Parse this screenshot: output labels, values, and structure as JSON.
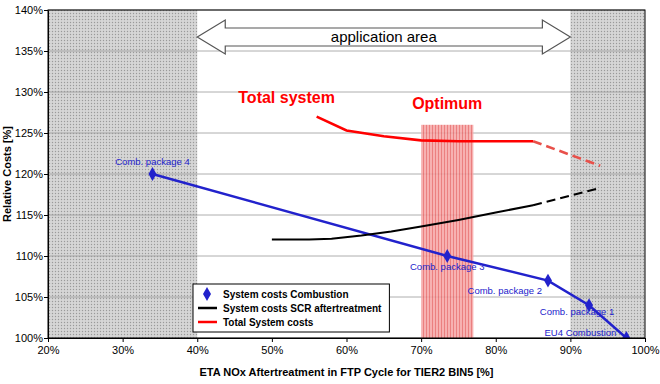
{
  "chart_data": {
    "type": "line",
    "x_label": "ETA NOx Aftertreatment in FTP Cycle for TIER2 BIN5 [%]",
    "y_label": "Relative Costs [%]",
    "xlim": [
      20,
      100
    ],
    "xticks": [
      {
        "value": 20,
        "label": "20%"
      },
      {
        "value": 30,
        "label": "30%"
      },
      {
        "value": 40,
        "label": "40%"
      },
      {
        "value": 50,
        "label": "50%"
      },
      {
        "value": 60,
        "label": "60%"
      },
      {
        "value": 70,
        "label": "70%"
      },
      {
        "value": 80,
        "label": "80%"
      },
      {
        "value": 90,
        "label": "90%"
      },
      {
        "value": 100,
        "label": "100%"
      }
    ],
    "ylim": [
      100,
      140
    ],
    "yticks": [
      {
        "value": 100,
        "label": "100%"
      },
      {
        "value": 105,
        "label": "105%"
      },
      {
        "value": 110,
        "label": "110%"
      },
      {
        "value": 115,
        "label": "115%"
      },
      {
        "value": 120,
        "label": "120%"
      },
      {
        "value": 125,
        "label": "125%"
      },
      {
        "value": 130,
        "label": "130%"
      },
      {
        "value": 135,
        "label": "135%"
      },
      {
        "value": 140,
        "label": "140%"
      }
    ],
    "grid": true,
    "legend": "lower left",
    "series": [
      {
        "name": "System costs Combustion",
        "color": "#2222cc",
        "marker": "diamond",
        "line_style": "solid",
        "x": [
          34,
          73.5,
          87,
          92.5,
          97.5
        ],
        "values": [
          120,
          110,
          107,
          104,
          100
        ],
        "labels": [
          "Comb. package 4",
          "Comb. package 3",
          "Comb. package 2",
          "Comb. package 1",
          "EU4 Combustion"
        ]
      },
      {
        "name": "System costs SCR aftertreatment",
        "color": "#000000",
        "marker": "none",
        "line_style": "solid",
        "x": [
          50,
          55,
          58,
          62,
          66,
          70,
          75,
          80,
          85
        ],
        "values": [
          112,
          112,
          112.1,
          112.5,
          113,
          113.6,
          114.4,
          115.3,
          116.2
        ]
      },
      {
        "color": "#000000",
        "marker": "none",
        "line_style": "dashed",
        "x": [
          85,
          94
        ],
        "values": [
          116.2,
          118.3
        ]
      },
      {
        "name": "Total System costs",
        "color": "#ff0000",
        "marker": "none",
        "line_style": "solid",
        "x": [
          56,
          60,
          65,
          70,
          75,
          80,
          85
        ],
        "values": [
          127,
          125.3,
          124.6,
          124.1,
          124,
          124,
          124
        ]
      },
      {
        "color": "#e8504a",
        "marker": "none",
        "line_style": "dashed",
        "x": [
          85,
          94
        ],
        "values": [
          124,
          121
        ]
      }
    ],
    "application_area": {
      "label": "application area",
      "range": [
        40,
        90
      ]
    },
    "optimum": {
      "label": "Optimum",
      "range": [
        70,
        77
      ],
      "top": 126,
      "color": "#ff0000"
    },
    "annotations": [
      {
        "text": "Total system",
        "x": 45.5,
        "y": 128.7,
        "color": "#ff0000"
      }
    ]
  }
}
